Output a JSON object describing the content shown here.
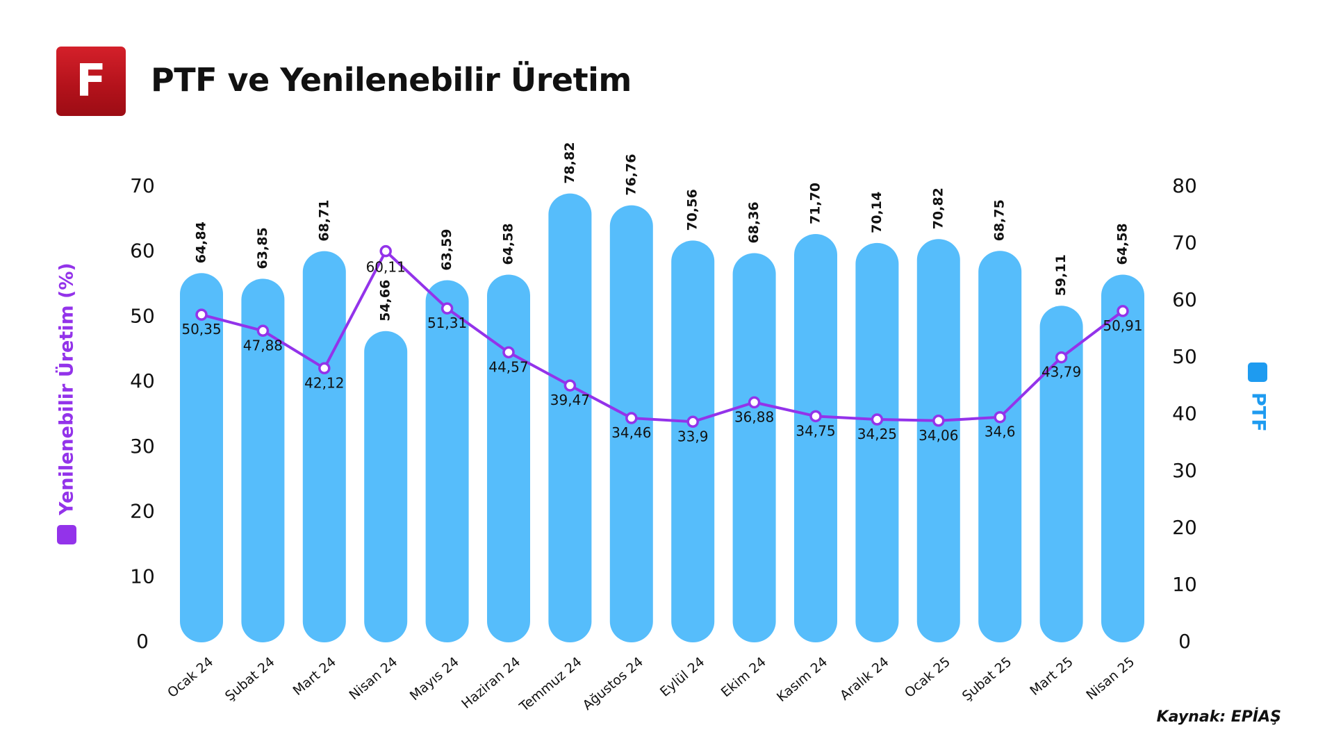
{
  "header": {
    "logo_letter": "F",
    "title": "PTF ve Yenilenebilir Üretim"
  },
  "source": "Kaynak: EPİAŞ",
  "colors": {
    "bar": "#56bdfb",
    "line": "#9333ea",
    "logo": "#c4161f"
  },
  "chart_data": {
    "type": "bar",
    "categories": [
      "Ocak 24",
      "Şubat 24",
      "Mart 24",
      "Nisan 24",
      "Mayıs 24",
      "Haziran 24",
      "Temmuz 24",
      "Ağustos 24",
      "Eylül 24",
      "Ekim 24",
      "Kasım 24",
      "Aralık 24",
      "Ocak 25",
      "Şubat 25",
      "Mart 25",
      "Nisan 25"
    ],
    "series": [
      {
        "name": "PTF",
        "type": "bar",
        "axis": "right",
        "values": [
          64.84,
          63.85,
          68.71,
          54.66,
          63.59,
          64.58,
          78.82,
          76.76,
          70.56,
          68.36,
          71.7,
          70.14,
          70.82,
          68.75,
          59.11,
          64.58
        ],
        "labels": [
          "64,84",
          "63,85",
          "68,71",
          "54,66",
          "63,59",
          "64,58",
          "78,82",
          "76,76",
          "70,56",
          "68,36",
          "71,70",
          "70,14",
          "70,82",
          "68,75",
          "59,11",
          "64,58"
        ]
      },
      {
        "name": "Yenilenebilir Üretim (%)",
        "type": "line",
        "axis": "left",
        "values": [
          50.35,
          47.88,
          42.12,
          60.11,
          51.31,
          44.57,
          39.47,
          34.46,
          33.9,
          36.88,
          34.75,
          34.25,
          34.06,
          34.6,
          43.79,
          50.91
        ],
        "labels": [
          "50,35",
          "47,88",
          "42,12",
          "60,11",
          "51,31",
          "44,57",
          "39,47",
          "34,46",
          "33,9",
          "36,88",
          "34,75",
          "34,25",
          "34,06",
          "34,6",
          "43,79",
          "50,91"
        ]
      }
    ],
    "left_axis": {
      "label": "Yenilenebilir Üretim (%)",
      "ylim": [
        0,
        70
      ],
      "ticks": [
        "0",
        "10",
        "20",
        "30",
        "40",
        "50",
        "60",
        "70"
      ]
    },
    "right_axis": {
      "label": "PTF",
      "ylim": [
        0,
        80
      ],
      "ticks": [
        "0",
        "10",
        "20",
        "30",
        "40",
        "50",
        "60",
        "70",
        "80"
      ]
    },
    "grid": false
  }
}
